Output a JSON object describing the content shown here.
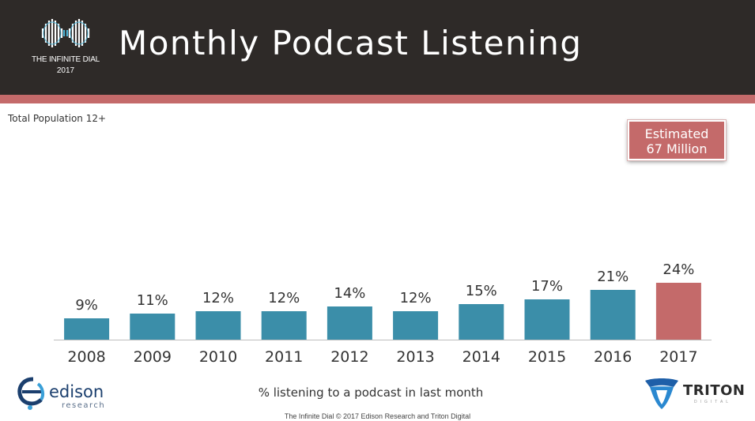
{
  "header": {
    "title": "Monthly Podcast Listening",
    "logo_name": "THE INFINITE DIAL",
    "logo_year": "2017"
  },
  "subtitle": "Total Population 12+",
  "callout": {
    "line1": "Estimated",
    "line2": "67 Million"
  },
  "caption": "% listening to a podcast in last month",
  "footer": "The Infinite Dial  © 2017 Edison Research and Triton Digital",
  "logos": {
    "edison_word": "edison",
    "edison_sub": "research",
    "triton_word": "TRITON",
    "triton_sub": "DIGITAL"
  },
  "colors": {
    "header_bg": "#2e2a28",
    "accent": "#c46a6a",
    "bar": "#3b8ea9",
    "highlight_bar": "#c46a6a"
  },
  "chart_data": {
    "type": "bar",
    "title": "Monthly Podcast Listening",
    "subtitle": "Total Population 12+",
    "xlabel": "% listening to a podcast in last month",
    "ylabel": "",
    "categories": [
      "2008",
      "2009",
      "2010",
      "2011",
      "2012",
      "2013",
      "2014",
      "2015",
      "2016",
      "2017"
    ],
    "values": [
      9,
      11,
      12,
      12,
      14,
      12,
      15,
      17,
      21,
      24
    ],
    "data_labels": [
      "9%",
      "11%",
      "12%",
      "12%",
      "14%",
      "12%",
      "15%",
      "17%",
      "21%",
      "24%"
    ],
    "highlight_index": 9,
    "ylim": [
      0,
      24
    ],
    "grid": false,
    "legend": "none"
  }
}
